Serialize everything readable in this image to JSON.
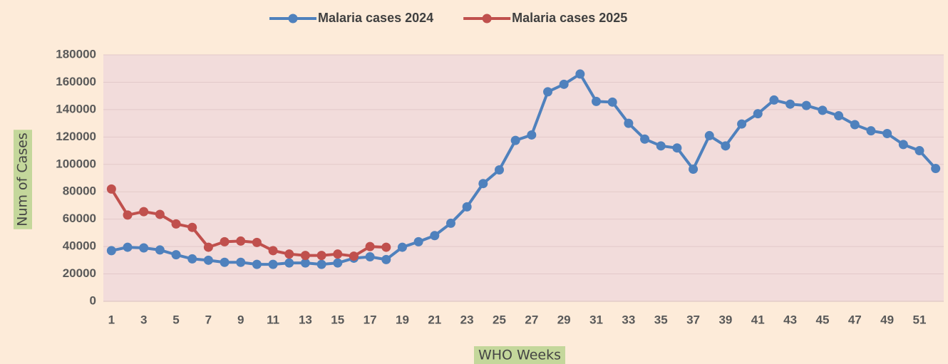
{
  "chart_data": {
    "type": "line",
    "x_label": "WHO Weeks",
    "y_label": "Num of Cases",
    "categories": [
      1,
      null,
      3,
      null,
      5,
      null,
      7,
      null,
      9,
      null,
      11,
      null,
      13,
      null,
      15,
      null,
      17,
      null,
      19,
      null,
      21,
      null,
      23,
      null,
      25,
      null,
      27,
      null,
      29,
      null,
      31,
      null,
      33,
      null,
      35,
      null,
      37,
      null,
      39,
      null,
      41,
      null,
      43,
      null,
      45,
      null,
      47,
      null,
      49,
      null,
      51,
      null
    ],
    "series": [
      {
        "name": "Malaria cases 2024",
        "color": "#4f81bd",
        "values": [
          37000,
          39500,
          39000,
          37500,
          34000,
          31000,
          30000,
          28500,
          28500,
          27000,
          27000,
          28000,
          28000,
          27000,
          28000,
          31500,
          32500,
          30500,
          39500,
          43500,
          48000,
          57000,
          69000,
          86000,
          96000,
          117500,
          121500,
          153000,
          158500,
          166000,
          146000,
          145500,
          130000,
          118500,
          113500,
          112000,
          96500,
          121000,
          113500,
          129500,
          137000,
          147000,
          144000,
          143000,
          139500,
          135500,
          129000,
          124500,
          122500,
          114500,
          110000,
          97000
        ]
      },
      {
        "name": "Malaria cases 2025",
        "color": "#c0504d",
        "values": [
          82000,
          63000,
          65500,
          63500,
          56500,
          54000,
          39500,
          43500,
          44000,
          43000,
          37000,
          34500,
          33500,
          33500,
          34500,
          33000,
          40000,
          39500,
          null,
          null,
          null,
          null,
          null,
          null,
          null,
          null,
          null,
          null,
          null,
          null,
          null,
          null,
          null,
          null,
          null,
          null,
          null,
          null,
          null,
          null,
          null,
          null,
          null,
          null,
          null,
          null,
          null,
          null,
          null,
          null,
          null,
          null
        ]
      }
    ],
    "ylim": [
      0,
      180000
    ],
    "yticks": [
      0,
      20000,
      40000,
      60000,
      80000,
      100000,
      120000,
      140000,
      160000,
      180000
    ],
    "grid": true,
    "legend": "top"
  }
}
